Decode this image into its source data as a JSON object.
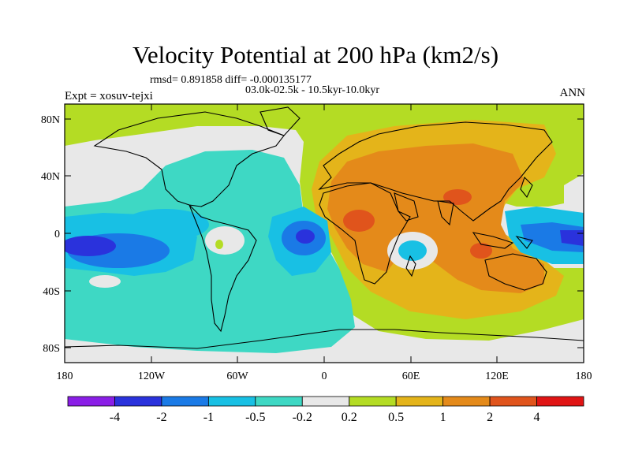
{
  "title": "Velocity Potential at 200 hPa (km2/s)",
  "stats_line": "rmsd= 0.891858 diff= -0.000135177",
  "period_line": "03.0k-02.5k - 10.5kyr-10.0kyr",
  "experiment_label": "Expt = xosuv-tejxi",
  "season_label": "ANN",
  "y_axis_labels": [
    "80N",
    "40N",
    "0",
    "40S",
    "80S"
  ],
  "x_axis_labels": [
    "180",
    "120W",
    "60W",
    "0",
    "60E",
    "120E",
    "180"
  ],
  "colorbar": {
    "boundaries": [
      "-4",
      "-2",
      "-1",
      "-0.5",
      "-0.2",
      "0.2",
      "0.5",
      "1",
      "2",
      "4"
    ],
    "colors": [
      "#8a1ee6",
      "#2a32dc",
      "#1a7ae6",
      "#18c0e4",
      "#3ed8c4",
      "#e8e8e8",
      "#b4dc24",
      "#e4b41a",
      "#e48a1a",
      "#e0541c",
      "#e01414"
    ]
  },
  "colors": {
    "land_outline": "#000000",
    "frame": "#000000"
  }
}
